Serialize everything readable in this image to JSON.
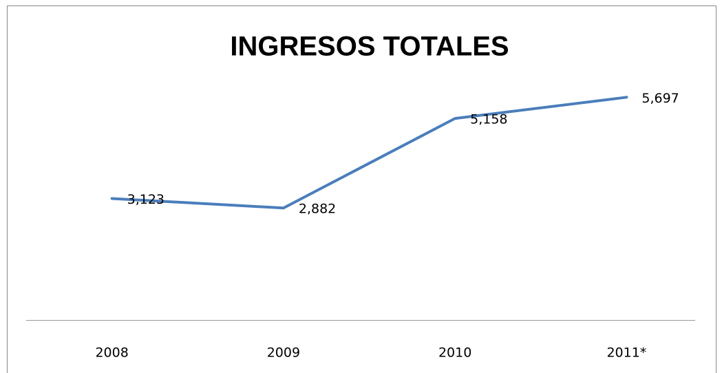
{
  "chart_data": {
    "type": "line",
    "title": "INGRESOS TOTALES",
    "categories": [
      "2008",
      "2009",
      "2010",
      "2011*"
    ],
    "values": [
      3123,
      2882,
      5158,
      5697
    ],
    "value_labels": [
      "3,123",
      "2,882",
      "5,158",
      "5,697"
    ],
    "color": "#4a7ebb",
    "ylim": [
      0,
      6000
    ]
  }
}
